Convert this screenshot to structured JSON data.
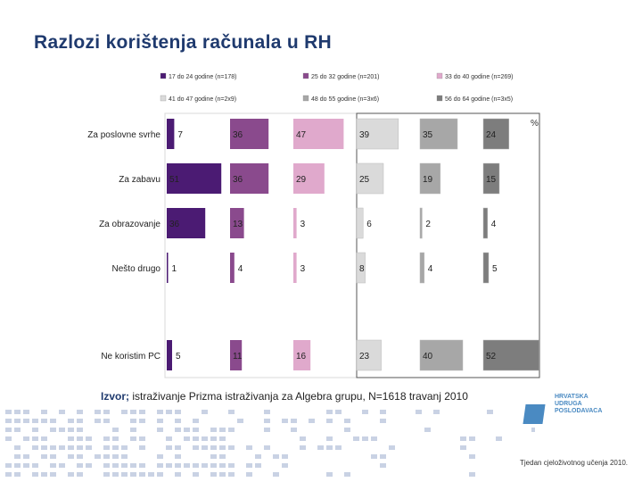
{
  "title": "Razlozi korištenja računala u RH",
  "colors": {
    "title": "#1f3a6e",
    "series": [
      "#4b1b73",
      "#8a4a8d",
      "#e0a9cc",
      "#dadada",
      "#a7a7a7",
      "#7d7d7d"
    ]
  },
  "chart_data": {
    "type": "bar",
    "unit": "%",
    "legend": [
      "17 do 24 godine (n=178)",
      "25 do 32 godine (n=201)",
      "33 do 40 godine (n=269)",
      "41 do 47 godine (n=2x9)",
      "48 do 55 godine (n=3x6)",
      "56 do 64 godine (n=3x5)"
    ],
    "categories": [
      "Za poslovne svrhe",
      "Za zabavu",
      "Za obrazovanje",
      "Nešto drugo",
      "Ne koristim PC"
    ],
    "series": [
      {
        "name": "17 do 24 godine (n=178)",
        "values": [
          7,
          51,
          36,
          1,
          5
        ]
      },
      {
        "name": "25 do 32 godine (n=201)",
        "values": [
          36,
          36,
          13,
          4,
          11
        ]
      },
      {
        "name": "33 do 40 godine (n=269)",
        "values": [
          47,
          29,
          3,
          3,
          16
        ]
      },
      {
        "name": "41 do 47 godine (n=2x9)",
        "values": [
          39,
          25,
          6,
          8,
          23
        ]
      },
      {
        "name": "48 do 55 godine (n=3x6)",
        "values": [
          35,
          19,
          2,
          4,
          40
        ]
      },
      {
        "name": "56 do 64 godine (n=3x5)",
        "values": [
          24,
          15,
          4,
          5,
          52
        ]
      }
    ],
    "xlim": [
      0,
      100
    ]
  },
  "source": {
    "key": "Izvor;",
    "text": " istraživanje Prizma istraživanja za Algebra grupu, N=1618 travanj 2010"
  },
  "logo": {
    "lines": [
      "HRVATSKA",
      "UDRUGA",
      "POSLODAVACA"
    ]
  },
  "footer": "Tjedan cjeloživotnog učenja 2010."
}
